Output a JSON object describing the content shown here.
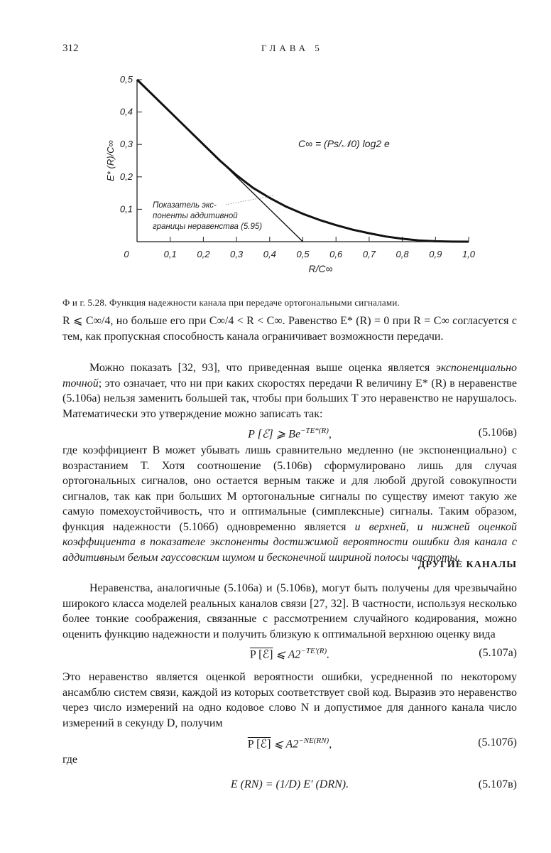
{
  "header": {
    "page_number": "312",
    "running_head": "ГЛАВА 5"
  },
  "chart_data": {
    "type": "line",
    "xlabel": "R/C∞",
    "ylabel": "E* (R)/C∞",
    "xlim": [
      0,
      1.0
    ],
    "ylim": [
      0,
      0.5
    ],
    "x_ticks": [
      "0",
      "0,1",
      "0,2",
      "0,3",
      "0,4",
      "0,5",
      "0,6",
      "0,7",
      "0,8",
      "0,9",
      "1,0"
    ],
    "y_ticks": [
      "0,1",
      "0,2",
      "0,3",
      "0,4",
      "0,5"
    ],
    "grid": false,
    "annotation_formula": "C∞ = (Ps/𝒩0) log2 e",
    "annotation_bound": [
      "Показатель экс-",
      "поненты аддитивной",
      "границы неравенства (5.95)"
    ],
    "series": [
      {
        "x": [
          0,
          0.1,
          0.2,
          0.25,
          0.3,
          0.35,
          0.4,
          0.45,
          0.5,
          0.55,
          0.6,
          0.65,
          0.7,
          0.75,
          0.8,
          0.85,
          0.9,
          0.95,
          1.0
        ],
        "y": [
          0.5,
          0.4,
          0.3,
          0.25,
          0.205,
          0.166,
          0.135,
          0.108,
          0.086,
          0.067,
          0.051,
          0.037,
          0.026,
          0.016,
          0.009,
          0.0039,
          0.0013,
          0.0003,
          0
        ]
      },
      {
        "x": [
          0,
          0.5
        ],
        "y": [
          0.5,
          0
        ]
      }
    ]
  },
  "caption": "Ф и г.  5.28. Функция надежности канала при передаче ортогональными сигналами.",
  "paragraphs": [
    {
      "indent": false,
      "segments": [
        {
          "t": "R ⩽ C∞/4,  но больше  его при  C∞/4 < R < C∞.  Равенство  E* (R) = 0 при R = C∞ согласуется с тем, как пропускная способность канала ограничивает возможности передачи."
        }
      ]
    },
    {
      "indent": true,
      "segments": [
        {
          "t": "Можно показать [32, 93], что приведенная выше оценка является "
        },
        {
          "t": "экспоненциально точной",
          "i": true
        },
        {
          "t": "; это означает, что ни при каких скоростях передачи R величину E* (R) в неравенстве (5.106а) нельзя заменить большей так, чтобы при больших T это неравенство не нарушалось. Математически это утверждение можно записать так:"
        }
      ]
    },
    {
      "indent": false,
      "segments": [
        {
          "t": "где коэффициент B может убывать лишь сравнительно медленно (не экспоненциально) с возрастанием T. Хотя соотношение (5.106в) сформулировано лишь для случая ортогональных сигналов, оно остается верным также и для любой другой совокупности сигналов, так как при больших M ортогональные сигналы по существу имеют такую же самую помехоустойчивость, что и оптимальные (симплексные) сигналы. Таким образом, функция надежности (5.106б) одновременно является "
        },
        {
          "t": "и верхней, и нижней оценкой коэффициента в показателе экспоненты достижимой вероятности ошибки для канала с аддитивным белым гауссовским шумом и бесконечной шириной полосы частоты.",
          "i": true
        }
      ]
    },
    {
      "indent": true,
      "segments": [
        {
          "t": "Неравенства, аналогичные (5.106а) и (5.106в), могут быть получены для чрезвычайно широкого класса моделей реальных каналов связи [27, 32]. В частности, используя несколько более тонкие соображения, связанные с рассмотрением случайного кодирования, можно оценить функцию надежности и получить близкую к оптимальной верхнюю оценку вида"
        }
      ]
    },
    {
      "indent": false,
      "segments": [
        {
          "t": "Это неравенство является оценкой вероятности ошибки, усредненной по некоторому ансамблю систем связи, каждой из которых соответствует свой код. Выразив это неравенство через число измерений на одно кодовое слово N и допустимое для данного канала число измерений в секунду D, получим"
        }
      ]
    }
  ],
  "heading": "ДРУГИЕ КАНАЛЫ",
  "equations": {
    "e106v": {
      "lhs": "P [ℰ] ⩾ Be",
      "sup": "−TE*(R)",
      "tail": ",",
      "label": "(5.106в)"
    },
    "e107a": {
      "lhs": "P [ℰ]",
      "mid": " ⩽ A2",
      "sup": "−TE′(R)",
      "tail": ".",
      "label": "(5.107а)"
    },
    "e107b": {
      "lhs": "P [ℰ]",
      "mid": " ⩽ A2",
      "sup": "−NE(RN)",
      "tail": ",",
      "label": "(5.107б)"
    },
    "e107v": {
      "text": "E (RN) = (1/D) E′ (DRN).",
      "label": "(5.107в)"
    }
  },
  "where": "где"
}
